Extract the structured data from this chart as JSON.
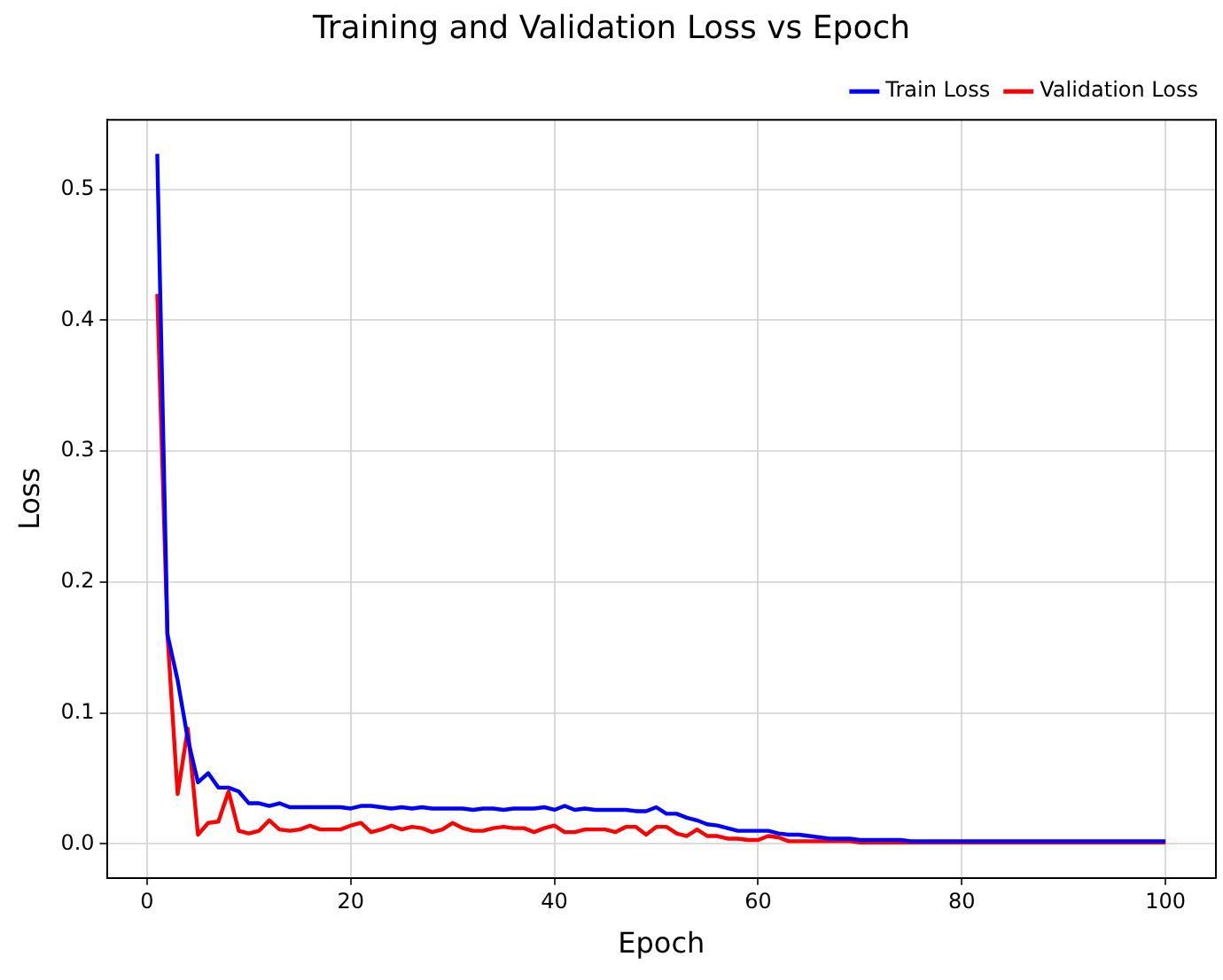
{
  "chart_data": {
    "type": "line",
    "title": "Training and Validation Loss vs Epoch",
    "xlabel": "Epoch",
    "ylabel": "Loss",
    "x": [
      1,
      2,
      3,
      4,
      5,
      6,
      7,
      8,
      9,
      10,
      11,
      12,
      13,
      14,
      15,
      16,
      17,
      18,
      19,
      20,
      21,
      22,
      23,
      24,
      25,
      26,
      27,
      28,
      29,
      30,
      31,
      32,
      33,
      34,
      35,
      36,
      37,
      38,
      39,
      40,
      41,
      42,
      43,
      44,
      45,
      46,
      47,
      48,
      49,
      50,
      51,
      52,
      53,
      54,
      55,
      56,
      57,
      58,
      59,
      60,
      61,
      62,
      63,
      64,
      65,
      66,
      67,
      68,
      69,
      70,
      71,
      72,
      73,
      74,
      75,
      76,
      77,
      78,
      79,
      80,
      81,
      82,
      83,
      84,
      85,
      86,
      87,
      88,
      89,
      90,
      91,
      92,
      93,
      94,
      95,
      96,
      97,
      98,
      99,
      100
    ],
    "series": [
      {
        "name": "Train Loss",
        "color": "#0000ff",
        "values": [
          0.527,
          0.16,
          0.125,
          0.08,
          0.047,
          0.054,
          0.043,
          0.043,
          0.04,
          0.031,
          0.031,
          0.029,
          0.031,
          0.028,
          0.028,
          0.028,
          0.028,
          0.028,
          0.028,
          0.027,
          0.029,
          0.029,
          0.028,
          0.027,
          0.028,
          0.027,
          0.028,
          0.027,
          0.027,
          0.027,
          0.027,
          0.026,
          0.027,
          0.027,
          0.026,
          0.027,
          0.027,
          0.027,
          0.028,
          0.026,
          0.029,
          0.026,
          0.027,
          0.026,
          0.026,
          0.026,
          0.026,
          0.025,
          0.025,
          0.028,
          0.023,
          0.023,
          0.02,
          0.018,
          0.015,
          0.014,
          0.012,
          0.01,
          0.01,
          0.01,
          0.01,
          0.008,
          0.007,
          0.007,
          0.006,
          0.005,
          0.004,
          0.004,
          0.004,
          0.003,
          0.003,
          0.003,
          0.003,
          0.003,
          0.002,
          0.002,
          0.002,
          0.002,
          0.002,
          0.002,
          0.002,
          0.002,
          0.002,
          0.002,
          0.002,
          0.002,
          0.002,
          0.002,
          0.002,
          0.002,
          0.002,
          0.002,
          0.002,
          0.002,
          0.002,
          0.002,
          0.002,
          0.002,
          0.002,
          0.002
        ]
      },
      {
        "name": "Validation Loss",
        "color": "#ff0000",
        "values": [
          0.42,
          0.16,
          0.038,
          0.088,
          0.007,
          0.016,
          0.017,
          0.04,
          0.01,
          0.008,
          0.01,
          0.018,
          0.011,
          0.01,
          0.011,
          0.014,
          0.011,
          0.011,
          0.011,
          0.014,
          0.016,
          0.009,
          0.011,
          0.014,
          0.011,
          0.013,
          0.012,
          0.009,
          0.011,
          0.016,
          0.012,
          0.01,
          0.01,
          0.012,
          0.013,
          0.012,
          0.012,
          0.009,
          0.012,
          0.014,
          0.009,
          0.009,
          0.011,
          0.011,
          0.011,
          0.009,
          0.013,
          0.013,
          0.007,
          0.013,
          0.013,
          0.008,
          0.006,
          0.011,
          0.006,
          0.006,
          0.004,
          0.004,
          0.003,
          0.003,
          0.006,
          0.005,
          0.002,
          0.002,
          0.002,
          0.002,
          0.002,
          0.002,
          0.002,
          0.001,
          0.001,
          0.001,
          0.001,
          0.001,
          0.001,
          0.001,
          0.001,
          0.001,
          0.001,
          0.001,
          0.001,
          0.001,
          0.001,
          0.001,
          0.001,
          0.001,
          0.001,
          0.001,
          0.001,
          0.001,
          0.001,
          0.001,
          0.001,
          0.001,
          0.001,
          0.001,
          0.001,
          0.001,
          0.001,
          0.001
        ]
      }
    ],
    "xlim": [
      -3.95,
      104.95
    ],
    "ylim": [
      -0.026,
      0.553
    ],
    "xticks": [
      0,
      20,
      40,
      60,
      80,
      100
    ],
    "yticks": [
      {
        "value": 0,
        "label": "0.0"
      },
      {
        "value": 0.1,
        "label": "0.1"
      },
      {
        "value": 0.2,
        "label": "0.2"
      },
      {
        "value": 0.3,
        "label": "0.3"
      },
      {
        "value": 0.4,
        "label": "0.4"
      },
      {
        "value": 0.5,
        "label": "0.5"
      }
    ],
    "grid": true,
    "legend": "top right",
    "marker": "none",
    "line_style": "solid"
  }
}
